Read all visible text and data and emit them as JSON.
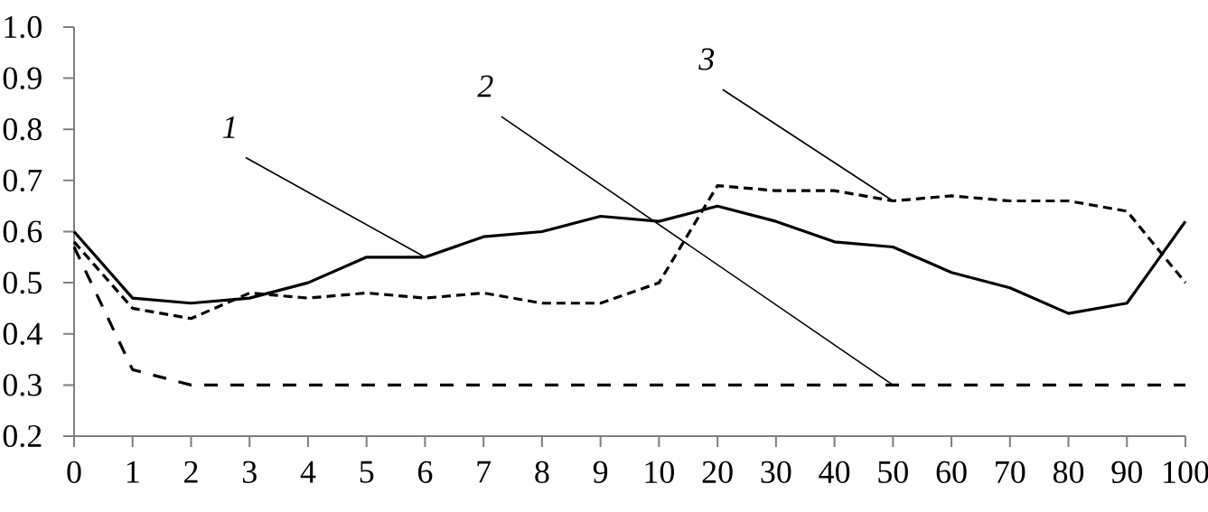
{
  "chart_data": {
    "type": "line",
    "categories": [
      "0",
      "1",
      "2",
      "3",
      "4",
      "5",
      "6",
      "7",
      "8",
      "9",
      "10",
      "20",
      "30",
      "40",
      "50",
      "60",
      "70",
      "80",
      "90",
      "100"
    ],
    "ylim": [
      0.2,
      1.0
    ],
    "yticks": [
      0.2,
      0.3,
      0.4,
      0.5,
      0.6,
      0.7,
      0.8,
      0.9,
      {
        "value": 1.0,
        "label": "1.0"
      }
    ],
    "series": [
      {
        "color": "#000000",
        "line_style": "solid",
        "values": [
          0.6,
          0.47,
          0.46,
          0.47,
          0.5,
          0.55,
          0.55,
          0.59,
          0.6,
          0.63,
          0.62,
          0.65,
          0.62,
          0.58,
          0.57,
          0.52,
          0.49,
          0.44,
          0.46,
          0.62
        ]
      },
      {
        "color": "#000000",
        "line_style": "dashed",
        "values": [
          0.57,
          0.33,
          0.3,
          0.3,
          0.3,
          0.3,
          0.3,
          0.3,
          0.3,
          0.3,
          0.3,
          0.3,
          0.3,
          0.3,
          0.3,
          0.3,
          0.3,
          0.3,
          0.3,
          0.3
        ]
      },
      {
        "color": "#000000",
        "line_style": "dashed",
        "values": [
          0.58,
          0.45,
          0.43,
          0.48,
          0.47,
          0.48,
          0.47,
          0.48,
          0.46,
          0.46,
          0.5,
          0.69,
          0.68,
          0.68,
          0.66,
          0.67,
          0.66,
          0.66,
          0.64,
          0.5
        ]
      }
    ],
    "annotations": [
      {
        "text": "1",
        "x": "6",
        "y": 0.55
      },
      {
        "text": "2",
        "x": "50",
        "y": 0.3
      },
      {
        "text": "3",
        "x": "50",
        "y": 0.66
      }
    ]
  }
}
